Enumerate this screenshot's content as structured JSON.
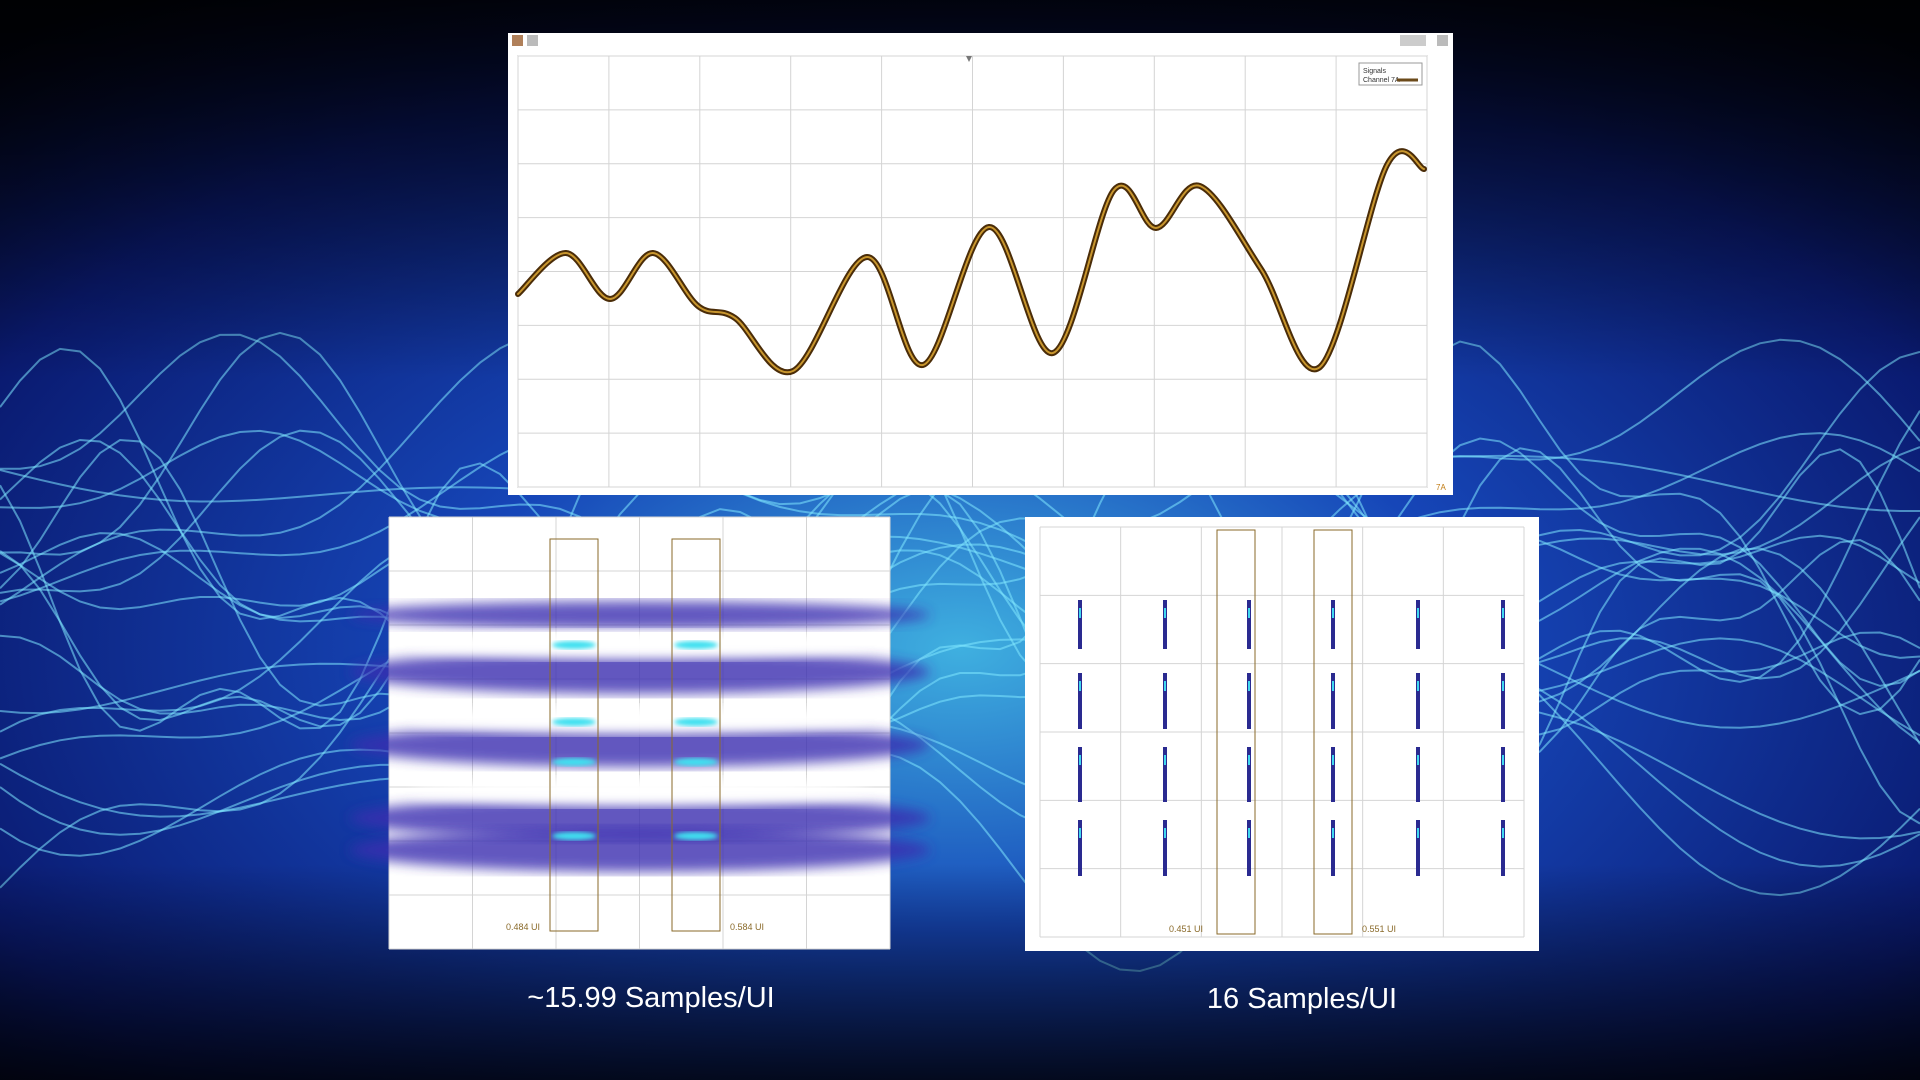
{
  "top_panel": {
    "legend_title": "Signals",
    "legend_entry": "Channel 7A",
    "channel_marker": "7A"
  },
  "left_panel": {
    "marker_left": "0.484 UI",
    "marker_right": "0.584 UI",
    "caption": "~15.99 Samples/UI"
  },
  "right_panel": {
    "marker_left": "0.451 UI",
    "marker_right": "0.551 UI",
    "caption": "16 Samples/UI"
  }
}
